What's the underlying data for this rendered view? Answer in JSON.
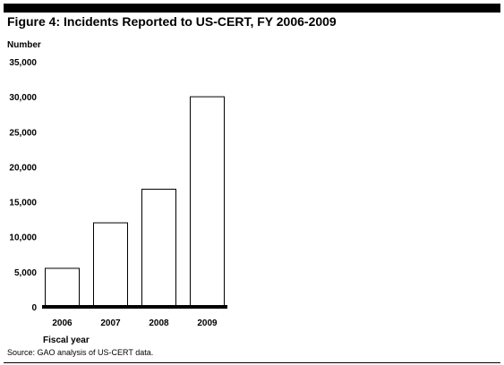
{
  "figure": {
    "title": "Figure 4: Incidents Reported to US-CERT, FY 2006-2009",
    "source": "Source: GAO analysis of US-CERT data."
  },
  "chart_data": {
    "type": "bar",
    "title": "Figure 4: Incidents Reported to US-CERT, FY 2006-2009",
    "ylabel": "Number",
    "xlabel": "Fiscal year",
    "categories": [
      "2006",
      "2007",
      "2008",
      "2009"
    ],
    "values": [
      5500,
      12000,
      16800,
      30000
    ],
    "ylim": [
      0,
      35000
    ],
    "yticks": [
      0,
      5000,
      10000,
      15000,
      20000,
      25000,
      30000,
      35000
    ],
    "ytick_labels": [
      "0",
      "5,000",
      "10,000",
      "15,000",
      "20,000",
      "25,000",
      "30,000",
      "35,000"
    ],
    "grid": false,
    "legend": "none",
    "bar_fill": "#ffffff",
    "bar_stroke": "#000000"
  }
}
